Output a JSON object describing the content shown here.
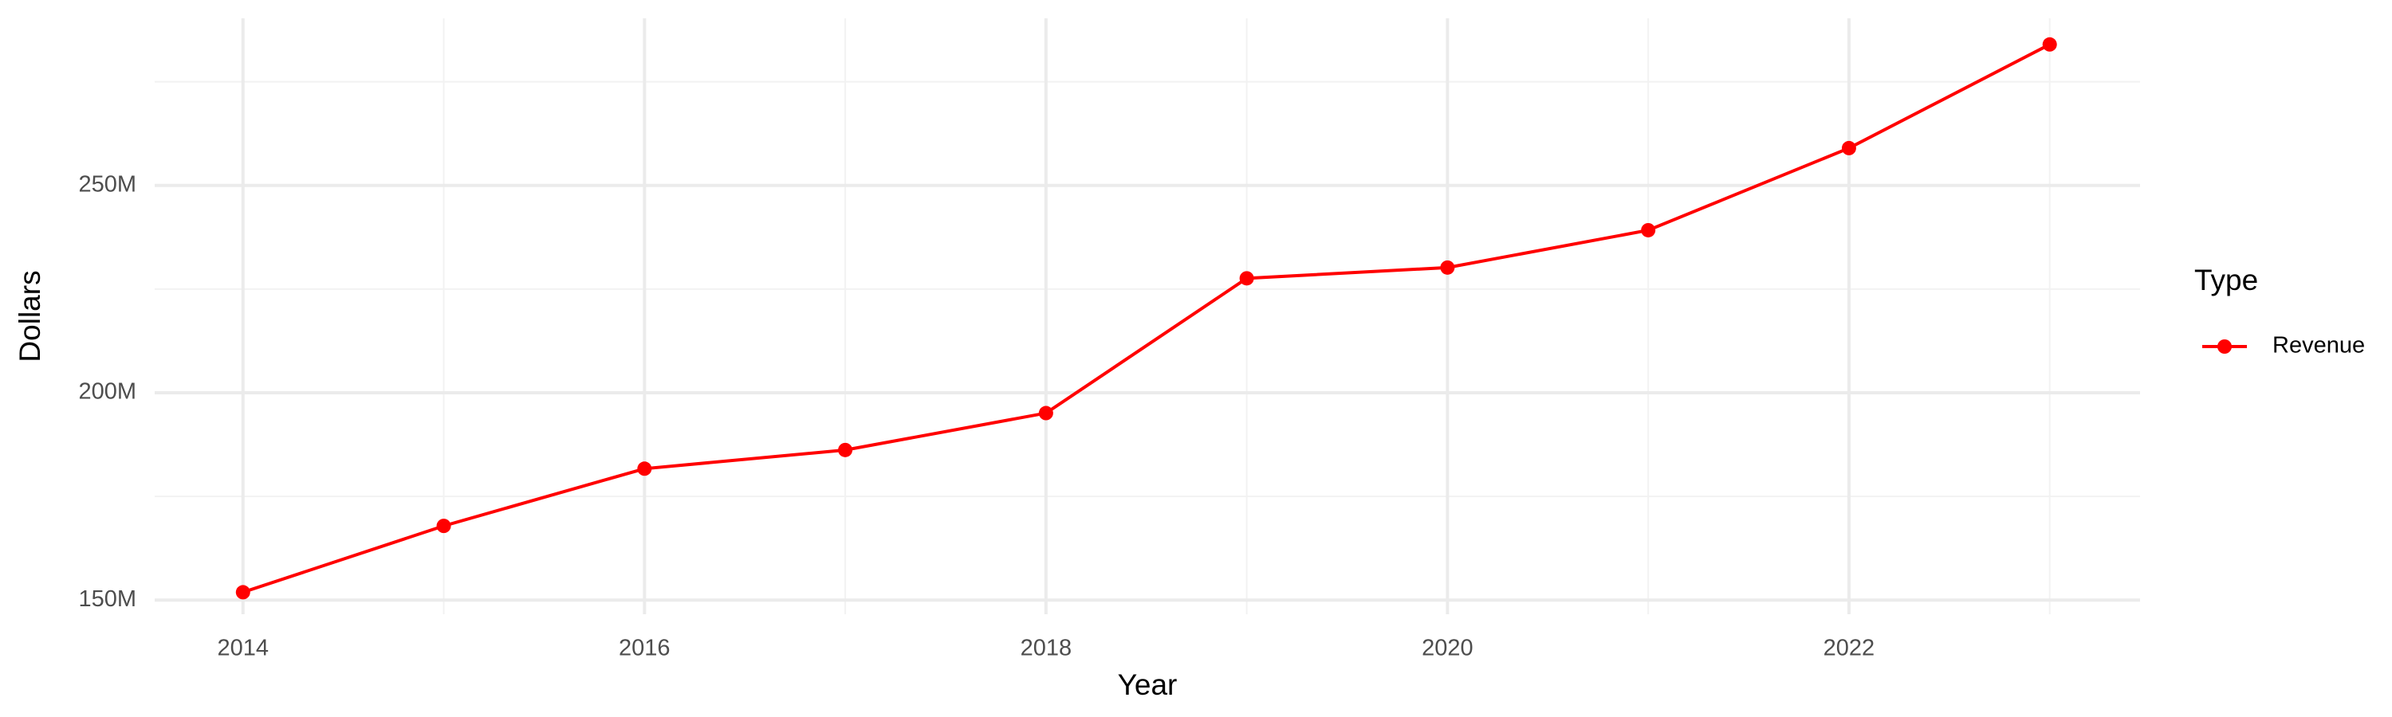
{
  "chart_data": {
    "type": "line",
    "x": [
      2014,
      2015,
      2016,
      2017,
      2018,
      2019,
      2020,
      2021,
      2022,
      2023
    ],
    "series": [
      {
        "name": "Revenue",
        "color": "#ff0000",
        "values": [
          151900000,
          167900000,
          181700000,
          186200000,
          195100000,
          227600000,
          230200000,
          239200000,
          259000000,
          284000000
        ]
      }
    ],
    "x_label": "Year",
    "y_label": "Dollars",
    "legend_title": "Type",
    "xlim": [
      2013.56,
      2023.45
    ],
    "xticks": [
      2014,
      2016,
      2018,
      2020,
      2022
    ],
    "ylim": [
      146600000,
      290300000
    ],
    "yticks": [
      {
        "value": 150000000,
        "label": "150M"
      },
      {
        "value": 200000000,
        "label": "200M"
      },
      {
        "value": 250000000,
        "label": "250M"
      }
    ],
    "grid": true,
    "legend_position": "right"
  }
}
